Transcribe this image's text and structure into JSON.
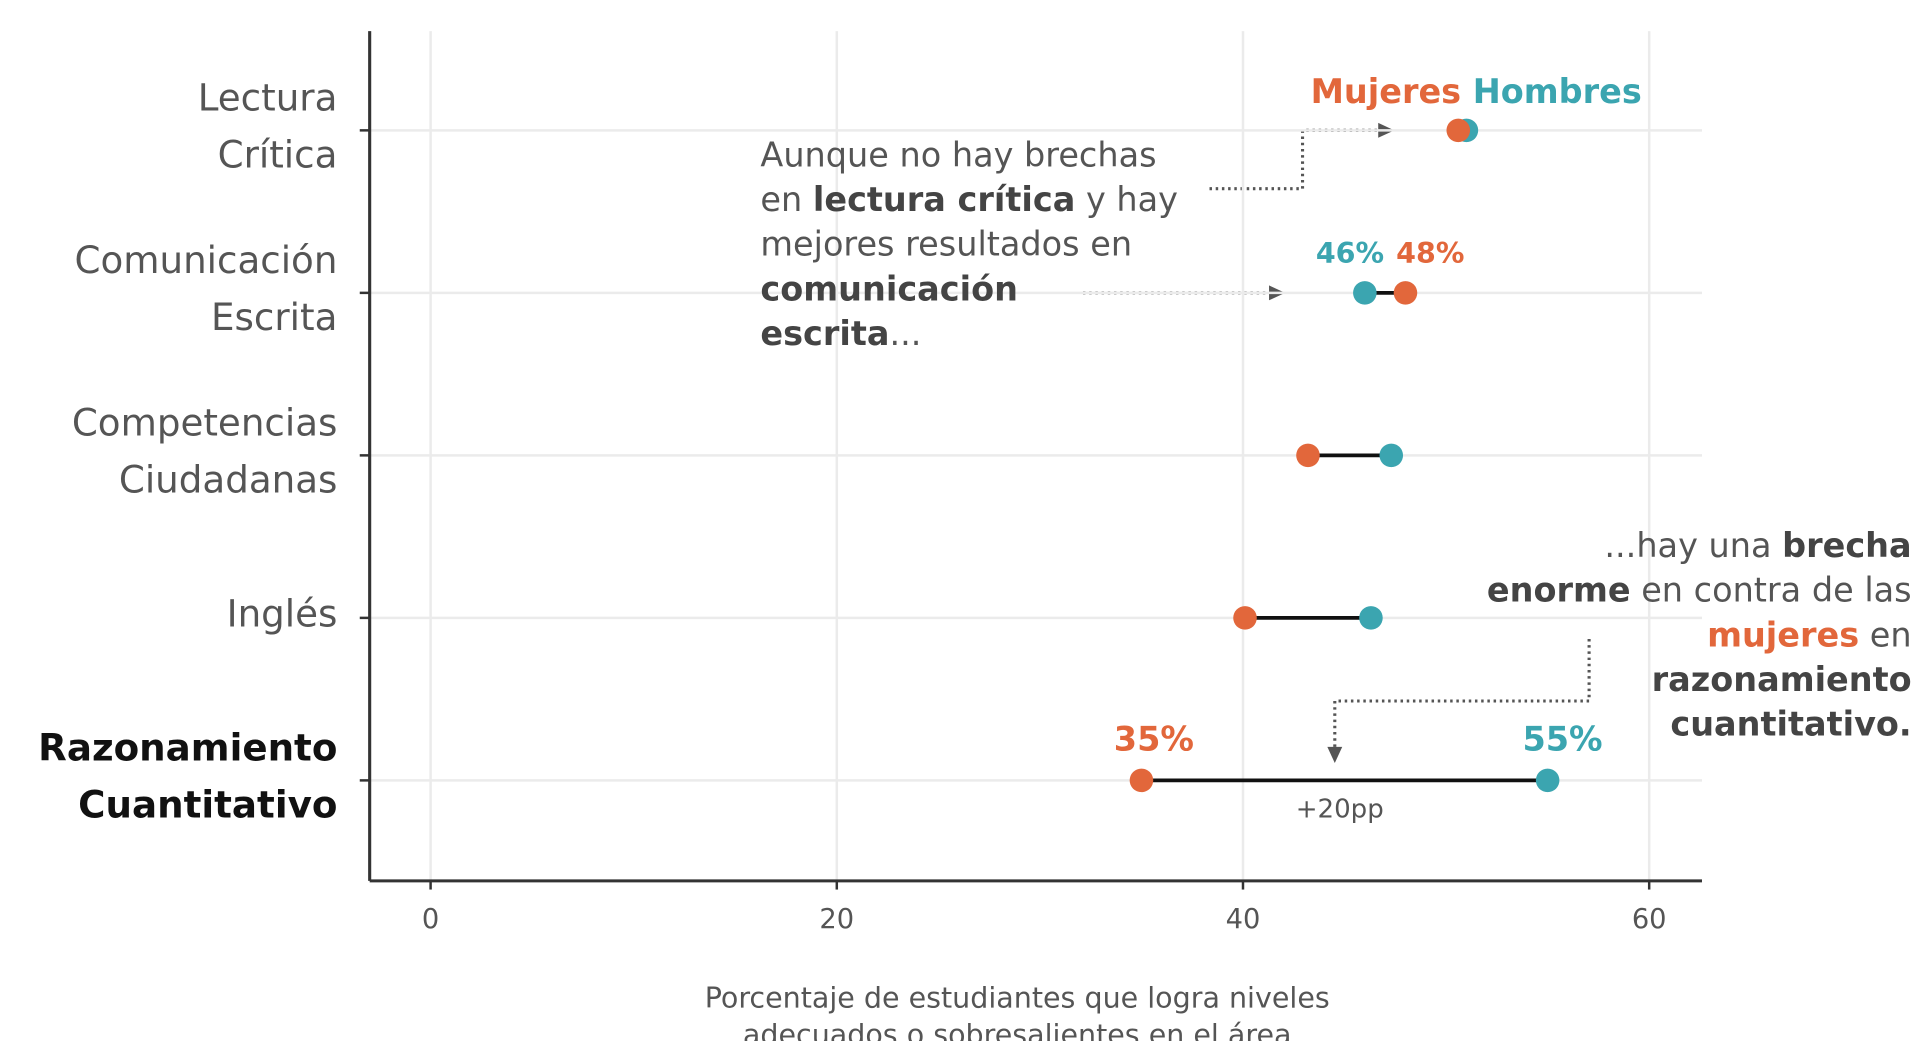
{
  "chart_data": {
    "type": "dumbbell",
    "categories": [
      "Lectura Crítica",
      "Comunicación Escrita",
      "Competencias Ciudadanas",
      "Inglés",
      "Razonamiento Cuantitativo"
    ],
    "bold_categories": [
      "Razonamiento Cuantitativo"
    ],
    "series": [
      {
        "name": "Mujeres",
        "color": "#e2673b",
        "values": [
          50.6,
          48,
          43.2,
          40.1,
          35
        ],
        "value_labels": [
          null,
          "48%",
          null,
          null,
          "35%"
        ]
      },
      {
        "name": "Hombres",
        "color": "#3ba5b0",
        "values": [
          51,
          46,
          47.3,
          46.3,
          55
        ],
        "value_labels": [
          null,
          "46%",
          null,
          null,
          "55%"
        ]
      }
    ],
    "xlim": [
      -3,
      62.6
    ],
    "xticks": [
      0,
      20,
      40,
      60
    ],
    "grid": true,
    "xlabel": [
      "Porcentaje de estudiantes que logra niveles",
      "adecuados o sobresalientes en el área"
    ],
    "annotations": [
      {
        "lines": [
          [
            {
              "text": "Aunque no hay brechas",
              "bold": false
            }
          ],
          [
            {
              "text": "en ",
              "bold": false
            },
            {
              "text": "lectura crítica",
              "bold": true
            },
            {
              "text": " y hay",
              "bold": false
            }
          ],
          [
            {
              "text": "mejores resultados en",
              "bold": false
            }
          ],
          [
            {
              "text": "comunicación",
              "bold": true
            }
          ],
          [
            {
              "text": "escrita",
              "bold": true
            },
            {
              "text": "...",
              "bold": false
            }
          ]
        ]
      },
      {
        "lines": [
          [
            {
              "text": "...hay una ",
              "bold": false
            },
            {
              "text": "brecha",
              "bold": true
            }
          ],
          [
            {
              "text": "enorme",
              "bold": true
            },
            {
              "text": " en contra de las",
              "bold": false
            }
          ],
          [
            {
              "text": "mujeres",
              "bold": true,
              "color": "#e2673b"
            },
            {
              "text": " en",
              "bold": false
            }
          ],
          [
            {
              "text": "razonamiento",
              "bold": true
            }
          ],
          [
            {
              "text": "cuantitativo.",
              "bold": true
            }
          ]
        ]
      },
      {
        "lines": [
          [
            {
              "text": "+20pp",
              "bold": false
            }
          ]
        ]
      }
    ]
  }
}
